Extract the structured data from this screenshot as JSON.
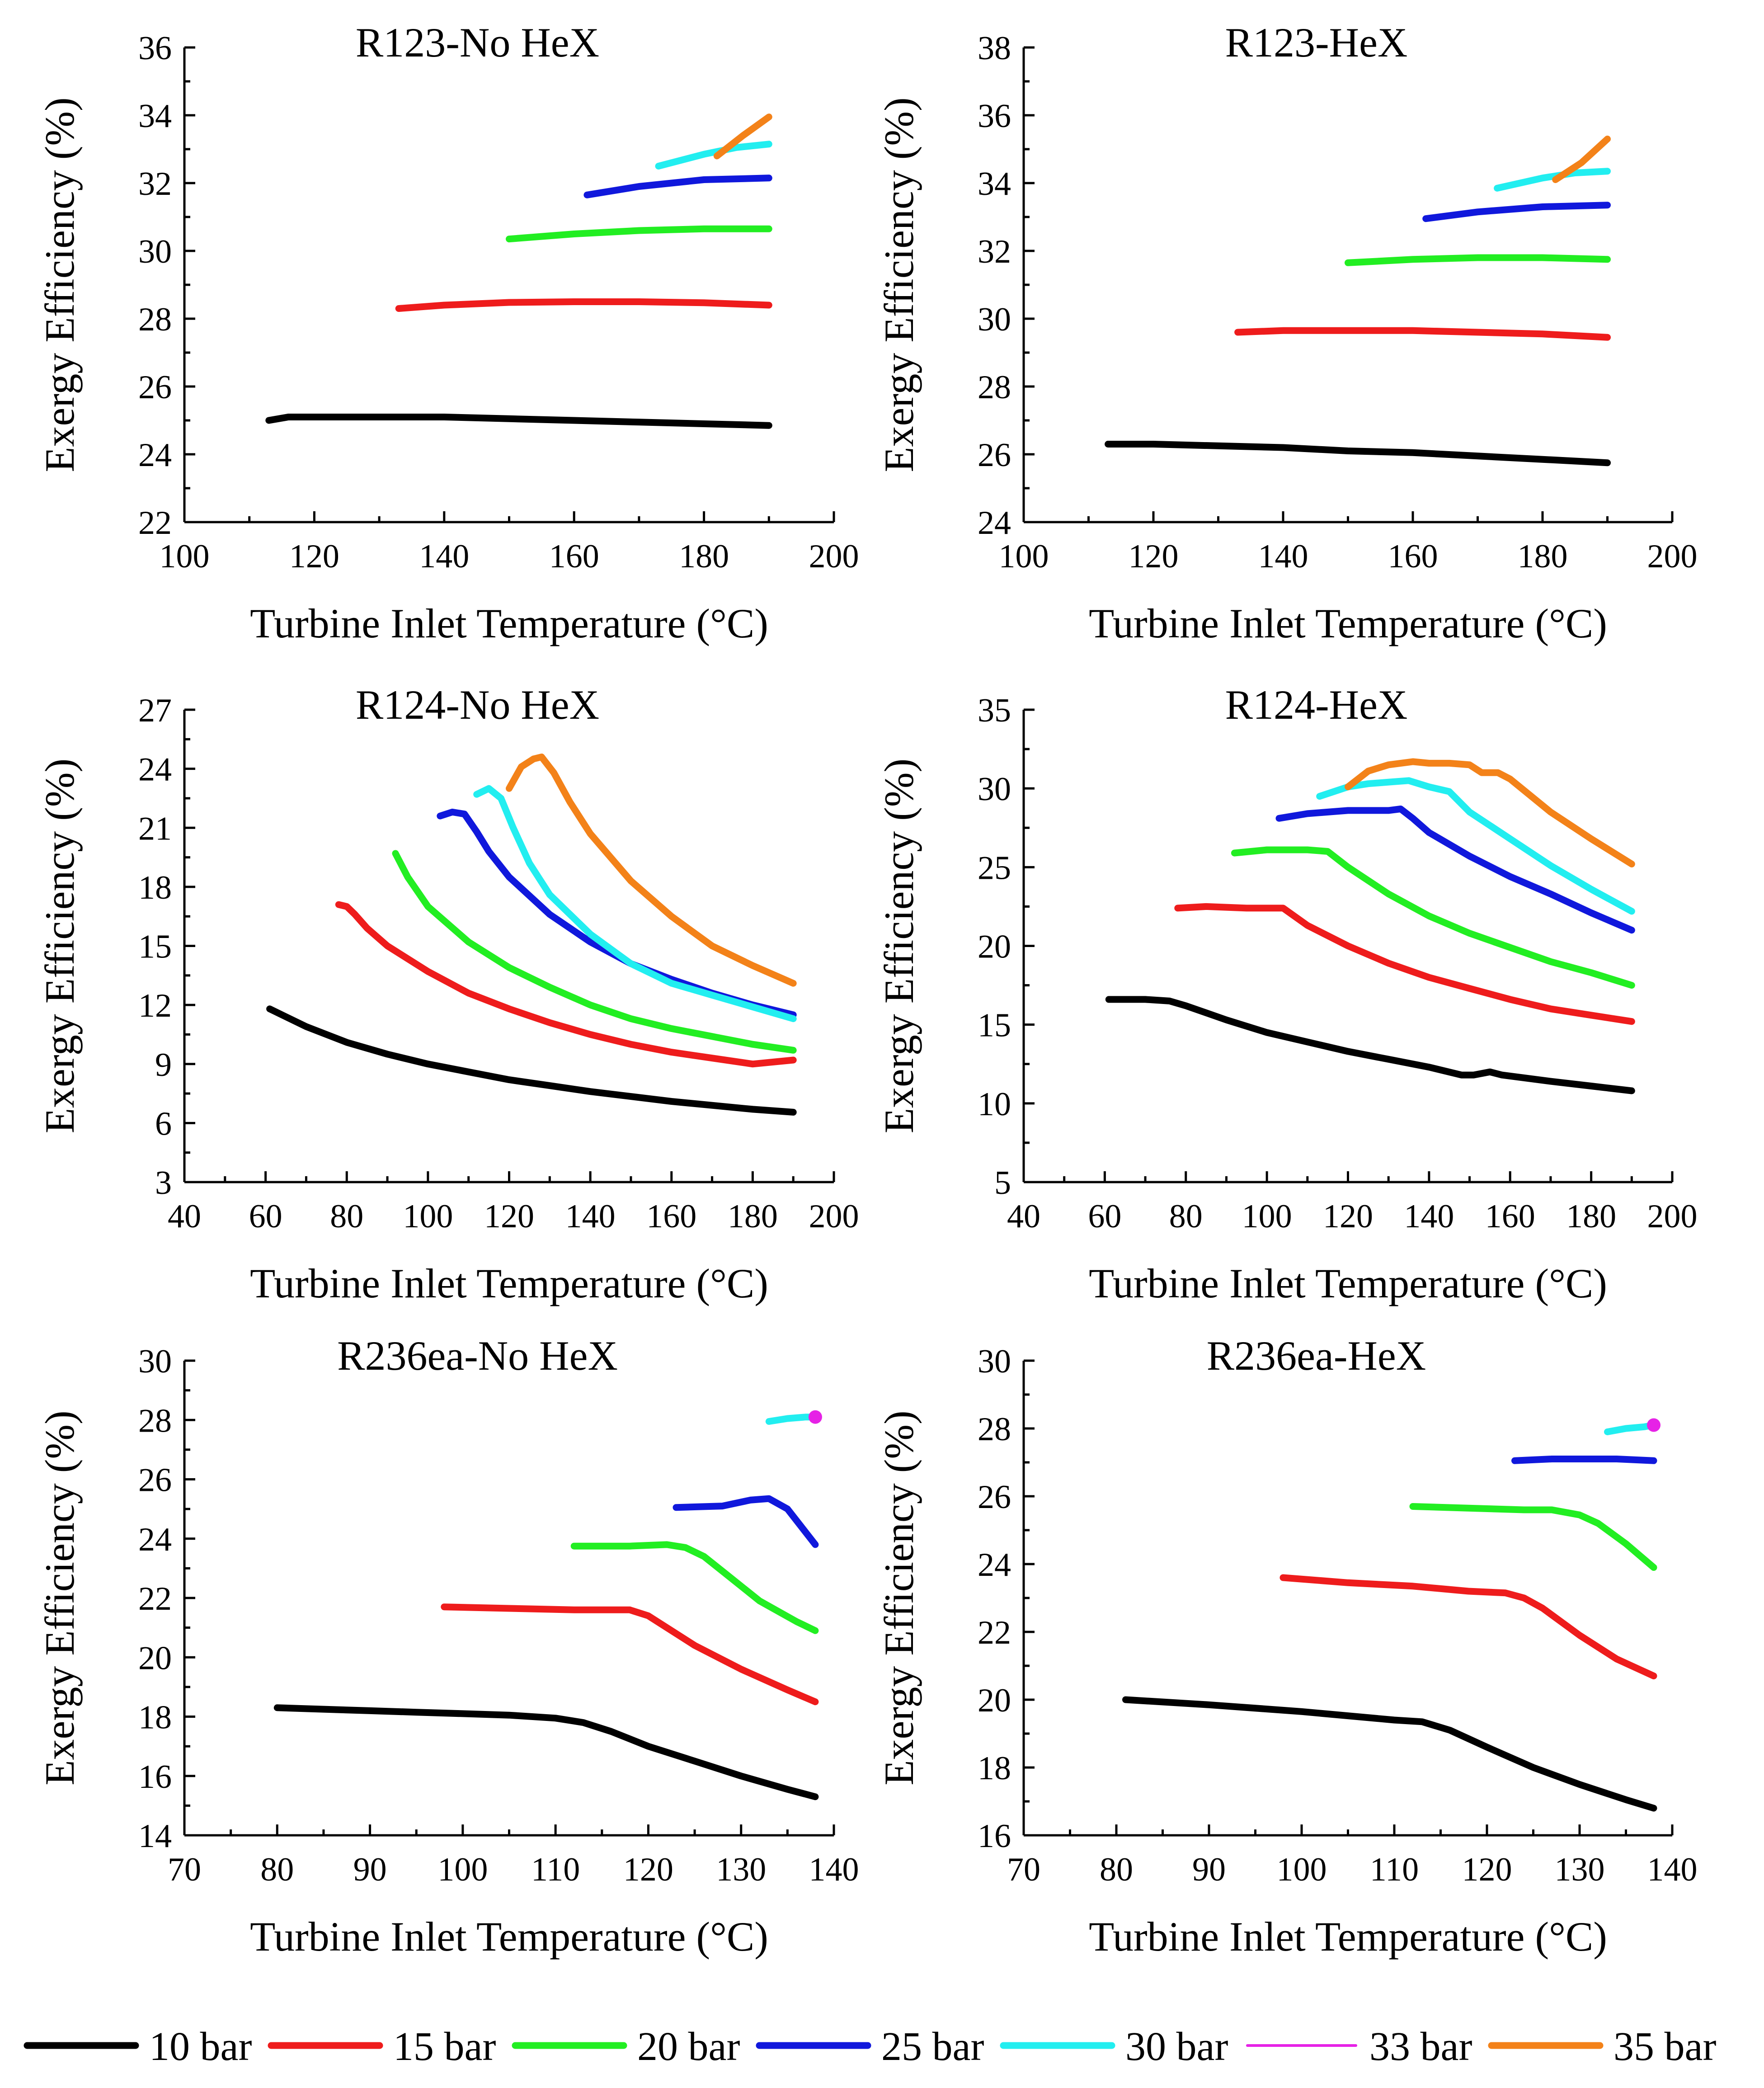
{
  "colors": {
    "10 bar": "#000000",
    "15 bar": "#ee1c1c",
    "20 bar": "#22ee22",
    "25 bar": "#1018dc",
    "30 bar": "#22eef0",
    "33 bar": "#e622e6",
    "35 bar": "#f38219"
  },
  "legend": [
    "10 bar",
    "15 bar",
    "20 bar",
    "25 bar",
    "30 bar",
    "33 bar",
    "35 bar"
  ],
  "chart_data": [
    {
      "type": "line",
      "title": "R123-No HeX",
      "xlabel": "Turbine Inlet Temperature (°C)",
      "ylabel": "Exergy Efficiency (%)",
      "xlim": [
        100,
        200
      ],
      "ylim": [
        22,
        36
      ],
      "xticks": [
        100,
        120,
        140,
        160,
        180,
        200
      ],
      "yticks": [
        22,
        24,
        26,
        28,
        30,
        32,
        34,
        36
      ],
      "series": [
        {
          "name": "10 bar",
          "x": [
            113,
            116,
            120,
            130,
            140,
            150,
            160,
            170,
            180,
            190
          ],
          "y": [
            25.0,
            25.1,
            25.1,
            25.1,
            25.1,
            25.05,
            25.0,
            24.95,
            24.9,
            24.85
          ]
        },
        {
          "name": "15 bar",
          "x": [
            133,
            140,
            150,
            160,
            170,
            180,
            190
          ],
          "y": [
            28.3,
            28.4,
            28.48,
            28.5,
            28.5,
            28.47,
            28.4
          ]
        },
        {
          "name": "20 bar",
          "x": [
            150,
            160,
            170,
            180,
            190
          ],
          "y": [
            30.35,
            30.5,
            30.6,
            30.65,
            30.65
          ]
        },
        {
          "name": "25 bar",
          "x": [
            162,
            170,
            180,
            190
          ],
          "y": [
            31.65,
            31.9,
            32.1,
            32.15
          ]
        },
        {
          "name": "30 bar",
          "x": [
            173,
            180,
            185,
            190
          ],
          "y": [
            32.5,
            32.85,
            33.05,
            33.15
          ]
        },
        {
          "name": "35 bar",
          "x": [
            182,
            186,
            190
          ],
          "y": [
            32.8,
            33.4,
            33.95
          ]
        }
      ]
    },
    {
      "type": "line",
      "title": "R123-HeX",
      "xlabel": "Turbine Inlet Temperature (°C)",
      "ylabel": "Exergy Efficiency (%)",
      "xlim": [
        100,
        200
      ],
      "ylim": [
        24,
        38
      ],
      "xticks": [
        100,
        120,
        140,
        160,
        180,
        200
      ],
      "yticks": [
        24,
        26,
        28,
        30,
        32,
        34,
        36,
        38
      ],
      "series": [
        {
          "name": "10 bar",
          "x": [
            113,
            120,
            130,
            140,
            150,
            160,
            170,
            180,
            190
          ],
          "y": [
            26.3,
            26.3,
            26.25,
            26.2,
            26.1,
            26.05,
            25.95,
            25.85,
            25.75
          ]
        },
        {
          "name": "15 bar",
          "x": [
            133,
            140,
            150,
            160,
            170,
            180,
            190
          ],
          "y": [
            29.6,
            29.65,
            29.65,
            29.65,
            29.6,
            29.55,
            29.45
          ]
        },
        {
          "name": "20 bar",
          "x": [
            150,
            160,
            170,
            180,
            190
          ],
          "y": [
            31.65,
            31.75,
            31.8,
            31.8,
            31.75
          ]
        },
        {
          "name": "25 bar",
          "x": [
            162,
            170,
            180,
            190
          ],
          "y": [
            32.95,
            33.15,
            33.3,
            33.35
          ]
        },
        {
          "name": "30 bar",
          "x": [
            173,
            180,
            185,
            190
          ],
          "y": [
            33.85,
            34.15,
            34.3,
            34.35
          ]
        },
        {
          "name": "35 bar",
          "x": [
            182,
            186,
            190
          ],
          "y": [
            34.1,
            34.6,
            35.3
          ]
        }
      ]
    },
    {
      "type": "line",
      "title": "R124-No HeX",
      "xlabel": "Turbine Inlet Temperature (°C)",
      "ylabel": "Exergy Efficiency (%)",
      "xlim": [
        40,
        200
      ],
      "ylim": [
        3,
        27
      ],
      "xticks": [
        40,
        60,
        80,
        100,
        120,
        140,
        160,
        180,
        200
      ],
      "yticks": [
        3,
        6,
        9,
        12,
        15,
        18,
        21,
        24,
        27
      ],
      "series": [
        {
          "name": "10 bar",
          "x": [
            61,
            70,
            80,
            90,
            100,
            110,
            120,
            130,
            140,
            150,
            160,
            170,
            180,
            190
          ],
          "y": [
            11.8,
            10.9,
            10.1,
            9.5,
            9.0,
            8.6,
            8.2,
            7.9,
            7.6,
            7.35,
            7.1,
            6.9,
            6.7,
            6.55
          ]
        },
        {
          "name": "15 bar",
          "x": [
            78,
            80,
            82,
            85,
            90,
            100,
            110,
            120,
            130,
            140,
            150,
            160,
            170,
            180,
            190
          ],
          "y": [
            17.1,
            17.0,
            16.6,
            15.9,
            15.0,
            13.7,
            12.6,
            11.8,
            11.1,
            10.5,
            10.0,
            9.6,
            9.3,
            9.0,
            9.2
          ]
        },
        {
          "name": "20 bar",
          "x": [
            92,
            95,
            100,
            110,
            120,
            130,
            140,
            150,
            160,
            170,
            180,
            190
          ],
          "y": [
            19.7,
            18.5,
            17.0,
            15.2,
            13.9,
            12.9,
            12.0,
            11.3,
            10.8,
            10.4,
            10.0,
            9.7
          ]
        },
        {
          "name": "25 bar",
          "x": [
            103,
            106,
            109,
            112,
            115,
            120,
            130,
            140,
            150,
            160,
            170,
            180,
            190
          ],
          "y": [
            21.6,
            21.8,
            21.7,
            20.8,
            19.8,
            18.5,
            16.6,
            15.2,
            14.1,
            13.3,
            12.6,
            12.0,
            11.5
          ]
        },
        {
          "name": "30 bar",
          "x": [
            112,
            115,
            118,
            121,
            125,
            130,
            140,
            150,
            160,
            170,
            180,
            190
          ],
          "y": [
            22.7,
            23.0,
            22.5,
            21.0,
            19.2,
            17.6,
            15.6,
            14.1,
            13.1,
            12.5,
            11.9,
            11.3
          ]
        },
        {
          "name": "35 bar",
          "x": [
            120,
            123,
            126,
            128,
            131,
            135,
            140,
            150,
            160,
            170,
            180,
            190
          ],
          "y": [
            23.0,
            24.1,
            24.5,
            24.6,
            23.8,
            22.3,
            20.7,
            18.3,
            16.5,
            15.0,
            14.0,
            13.1
          ]
        }
      ]
    },
    {
      "type": "line",
      "title": "R124-HeX",
      "xlabel": "Turbine Inlet Temperature (°C)",
      "ylabel": "Exergy Efficiency (%)",
      "xlim": [
        40,
        200
      ],
      "ylim": [
        5,
        35
      ],
      "xticks": [
        40,
        60,
        80,
        100,
        120,
        140,
        160,
        180,
        200
      ],
      "yticks": [
        5,
        10,
        15,
        20,
        25,
        30,
        35
      ],
      "series": [
        {
          "name": "10 bar",
          "x": [
            61,
            70,
            76,
            80,
            90,
            100,
            110,
            120,
            130,
            140,
            148,
            151,
            155,
            158,
            170,
            180,
            190
          ],
          "y": [
            16.6,
            16.6,
            16.5,
            16.2,
            15.3,
            14.5,
            13.9,
            13.3,
            12.8,
            12.3,
            11.8,
            11.8,
            12.0,
            11.8,
            11.4,
            11.1,
            10.8
          ]
        },
        {
          "name": "15 bar",
          "x": [
            78,
            85,
            95,
            104,
            110,
            120,
            130,
            140,
            150,
            160,
            170,
            180,
            190
          ],
          "y": [
            22.4,
            22.5,
            22.4,
            22.4,
            21.3,
            20.0,
            18.9,
            18.0,
            17.3,
            16.6,
            16.0,
            15.6,
            15.2
          ]
        },
        {
          "name": "20 bar",
          "x": [
            92,
            100,
            110,
            115,
            120,
            130,
            140,
            150,
            160,
            170,
            180,
            190
          ],
          "y": [
            25.9,
            26.1,
            26.1,
            26.0,
            25.0,
            23.3,
            21.9,
            20.8,
            19.9,
            19.0,
            18.3,
            17.5
          ]
        },
        {
          "name": "25 bar",
          "x": [
            103,
            110,
            120,
            130,
            133,
            136,
            140,
            150,
            160,
            170,
            180,
            190
          ],
          "y": [
            28.1,
            28.4,
            28.6,
            28.6,
            28.7,
            28.1,
            27.2,
            25.7,
            24.4,
            23.3,
            22.1,
            21.0
          ]
        },
        {
          "name": "30 bar",
          "x": [
            113,
            120,
            125,
            130,
            135,
            140,
            145,
            150,
            160,
            170,
            180,
            190
          ],
          "y": [
            29.5,
            30.1,
            30.3,
            30.4,
            30.5,
            30.1,
            29.8,
            28.5,
            26.8,
            25.1,
            23.6,
            22.2
          ]
        },
        {
          "name": "35 bar",
          "x": [
            120,
            125,
            130,
            136,
            140,
            145,
            150,
            153,
            157,
            160,
            170,
            180,
            190
          ],
          "y": [
            30.1,
            31.1,
            31.5,
            31.7,
            31.6,
            31.6,
            31.5,
            31.0,
            31.0,
            30.6,
            28.5,
            26.8,
            25.2
          ]
        }
      ]
    },
    {
      "type": "line",
      "title": "R236ea-No HeX",
      "xlabel": "Turbine Inlet Temperature (°C)",
      "ylabel": "Exergy Efficiency (%)",
      "xlim": [
        70,
        140
      ],
      "ylim": [
        14,
        30
      ],
      "xticks": [
        70,
        80,
        90,
        100,
        110,
        120,
        130,
        140
      ],
      "yticks": [
        14,
        16,
        18,
        20,
        22,
        24,
        26,
        28,
        30
      ],
      "series": [
        {
          "name": "10 bar",
          "x": [
            80,
            85,
            90,
            95,
            100,
            105,
            110,
            113,
            116,
            120,
            125,
            130,
            135,
            138
          ],
          "y": [
            18.3,
            18.25,
            18.2,
            18.15,
            18.1,
            18.05,
            17.95,
            17.8,
            17.5,
            17.0,
            16.5,
            16.0,
            15.55,
            15.3
          ]
        },
        {
          "name": "15 bar",
          "x": [
            98,
            105,
            112,
            116,
            118,
            120,
            125,
            130,
            135,
            138
          ],
          "y": [
            21.7,
            21.65,
            21.6,
            21.6,
            21.6,
            21.4,
            20.4,
            19.6,
            18.9,
            18.5
          ]
        },
        {
          "name": "20 bar",
          "x": [
            112,
            118,
            122,
            124,
            126,
            128,
            132,
            136,
            138
          ],
          "y": [
            23.75,
            23.75,
            23.8,
            23.7,
            23.4,
            22.9,
            21.9,
            21.2,
            20.9
          ]
        },
        {
          "name": "25 bar",
          "x": [
            123,
            128,
            131,
            133,
            135,
            137,
            138
          ],
          "y": [
            25.05,
            25.1,
            25.3,
            25.35,
            25.0,
            24.2,
            23.8
          ]
        },
        {
          "name": "30 bar",
          "x": [
            133,
            135,
            137,
            138
          ],
          "y": [
            27.95,
            28.05,
            28.1,
            28.1
          ]
        },
        {
          "name": "33 bar",
          "x": [
            138
          ],
          "y": [
            28.1
          ],
          "marker": "dot"
        }
      ]
    },
    {
      "type": "line",
      "title": "R236ea-HeX",
      "xlabel": "Turbine Inlet Temperature (°C)",
      "ylabel": "Exergy Efficiency (%)",
      "xlim": [
        70,
        140
      ],
      "ylim": [
        16,
        30
      ],
      "xticks": [
        70,
        80,
        90,
        100,
        110,
        120,
        130,
        140
      ],
      "yticks": [
        16,
        18,
        20,
        22,
        24,
        26,
        28,
        30
      ],
      "series": [
        {
          "name": "10 bar",
          "x": [
            81,
            90,
            100,
            110,
            113,
            116,
            120,
            125,
            130,
            135,
            138
          ],
          "y": [
            20.0,
            19.85,
            19.65,
            19.4,
            19.35,
            19.1,
            18.6,
            18.0,
            17.5,
            17.05,
            16.8
          ]
        },
        {
          "name": "15 bar",
          "x": [
            98,
            105,
            112,
            118,
            122,
            124,
            126,
            130,
            134,
            138
          ],
          "y": [
            23.6,
            23.45,
            23.35,
            23.2,
            23.15,
            23.0,
            22.7,
            21.9,
            21.2,
            20.7
          ]
        },
        {
          "name": "20 bar",
          "x": [
            112,
            118,
            124,
            127,
            130,
            132,
            135,
            138
          ],
          "y": [
            25.7,
            25.65,
            25.6,
            25.6,
            25.45,
            25.2,
            24.6,
            23.9
          ]
        },
        {
          "name": "25 bar",
          "x": [
            123,
            127,
            130,
            134,
            138
          ],
          "y": [
            27.05,
            27.1,
            27.1,
            27.1,
            27.05
          ]
        },
        {
          "name": "30 bar",
          "x": [
            133,
            135,
            137,
            138
          ],
          "y": [
            27.9,
            28.0,
            28.05,
            28.1
          ]
        },
        {
          "name": "33 bar",
          "x": [
            138
          ],
          "y": [
            28.1
          ],
          "marker": "dot"
        }
      ]
    }
  ]
}
